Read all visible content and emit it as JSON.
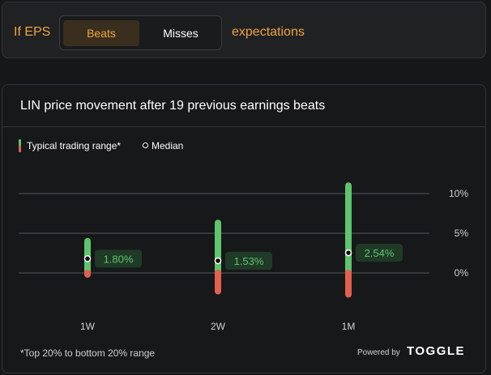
{
  "filter": {
    "prefix": "If EPS",
    "options": [
      "Beats",
      "Misses"
    ],
    "selected": "Beats",
    "suffix": "expectations"
  },
  "chart_title": "LIN price movement after 19 previous earnings beats",
  "legend": {
    "range_label": "Typical trading range*",
    "median_label": "Median"
  },
  "footnote": "*Top 20% to bottom 20% range",
  "powered_by": "Powered by",
  "brand": "TOGGLE",
  "colors": {
    "accent": "#f0a640",
    "up": "#5fc46e",
    "down": "#e2604d",
    "background": "#17181a"
  },
  "chart_data": {
    "type": "range",
    "categories": [
      "1W",
      "2W",
      "1M"
    ],
    "ylim": [
      -2.5,
      10.5
    ],
    "y_ticks": [
      0,
      5,
      10
    ],
    "y_tick_labels": [
      "0%",
      "5%",
      "10%"
    ],
    "series": [
      {
        "high": [
          4.0,
          6.3,
          11.0
        ],
        "low": [
          -0.2,
          -2.3,
          -2.7
        ],
        "median": [
          1.8,
          1.53,
          2.54
        ],
        "median_labels": [
          "1.80%",
          "1.53%",
          "2.54%"
        ]
      }
    ]
  }
}
